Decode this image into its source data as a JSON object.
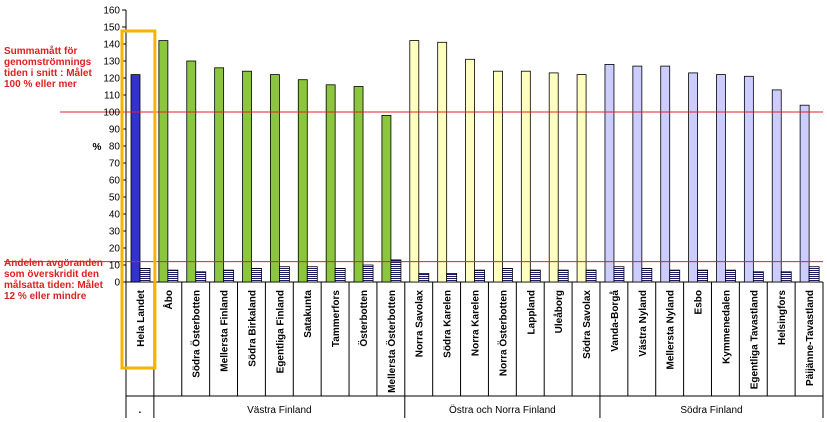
{
  "chart_data": {
    "type": "bar",
    "ylabel": "%",
    "ylim": [
      0,
      160
    ],
    "yticks": [
      0,
      10,
      20,
      30,
      40,
      50,
      60,
      70,
      80,
      90,
      100,
      110,
      120,
      130,
      140,
      150,
      160
    ],
    "reference_lines": [
      {
        "value": 100,
        "color": "#e02020"
      },
      {
        "value": 12,
        "color": "#e02020"
      }
    ],
    "categories": [
      "Hela Landet",
      "Åbo",
      "Södra Österbotten",
      "Mellersta Finland",
      "Södra Birkaland",
      "Egentliga Finland",
      "Satakunta",
      "Tammerfors",
      "Österbotten",
      "Mellersta Österbotten",
      "Norra Savolax",
      "Södra Karelen",
      "Norra Karelen",
      "Norra Österbotten",
      "Lappland",
      "Uleåborg",
      "Södra Savolax",
      "Vanda-Borgå",
      "Västra Nyland",
      "Mellersta Nyland",
      "Esbo",
      "Kymmenedalen",
      "Egentliga Tavastland",
      "Helsingfors",
      "Päijänne-Tavastland"
    ],
    "groups": [
      {
        "label": ".",
        "start": 0,
        "end": 0,
        "color": "#3333cc"
      },
      {
        "label": "Västra Finland",
        "start": 1,
        "end": 9,
        "color": "#8cc63f"
      },
      {
        "label": "Östra och Norra Finland",
        "start": 10,
        "end": 16,
        "color": "#ffffc0"
      },
      {
        "label": "Södra Finland",
        "start": 17,
        "end": 24,
        "color": "#ccccff"
      }
    ],
    "series": [
      {
        "name": "Summamått för genomströmningstiden i snitt",
        "values": [
          122,
          142,
          130,
          126,
          124,
          122,
          119,
          116,
          115,
          98,
          142,
          141,
          131,
          124,
          124,
          123,
          122,
          128,
          127,
          127,
          123,
          122,
          121,
          113,
          104
        ]
      },
      {
        "name": "Andelen avgöranden som överskridit den målsatta tiden",
        "values": [
          8,
          7,
          6,
          7,
          8,
          9,
          9,
          8,
          10,
          13,
          5,
          5,
          7,
          8,
          7,
          7,
          7,
          9,
          8,
          7,
          7,
          7,
          6,
          6,
          9
        ]
      }
    ],
    "highlight_category": "Hela Landet",
    "highlight_color": "#f5b400"
  },
  "annotations": {
    "top": "Summamått för genomströmnings tiden i snitt : Målet 100 % eller mer",
    "bottom": "Andelen avgöranden som överskridit den målsatta tiden: Målet 12 % eller mindre"
  }
}
